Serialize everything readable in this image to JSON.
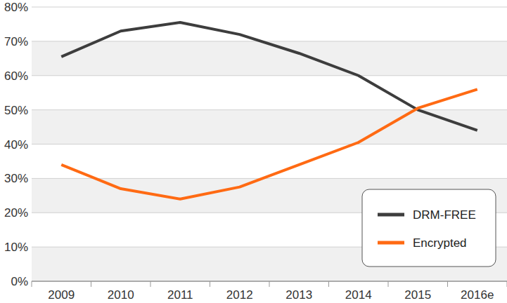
{
  "chart_data": {
    "type": "line",
    "categories": [
      "2009",
      "2010",
      "2011",
      "2012",
      "2013",
      "2014",
      "2015",
      "2016e"
    ],
    "series": [
      {
        "name": "DRM-FREE",
        "color": "#3d3d3d",
        "values": [
          65.5,
          73,
          75.5,
          72,
          66.5,
          60,
          50,
          44
        ]
      },
      {
        "name": "Encrypted",
        "color": "#ff6a13",
        "values": [
          34,
          27,
          24,
          27.5,
          34,
          40.5,
          50.5,
          56
        ]
      }
    ],
    "ylim": [
      0,
      80
    ],
    "yticks": [
      {
        "value": 0,
        "label": "0%"
      },
      {
        "value": 10,
        "label": "10%"
      },
      {
        "value": 20,
        "label": "20%"
      },
      {
        "value": 30,
        "label": "30%"
      },
      {
        "value": 40,
        "label": "40%"
      },
      {
        "value": 50,
        "label": "50%"
      },
      {
        "value": 60,
        "label": "60%"
      },
      {
        "value": 70,
        "label": "70%"
      },
      {
        "value": 80,
        "label": "80%"
      }
    ],
    "grid": true,
    "legend": "bottom-right"
  }
}
